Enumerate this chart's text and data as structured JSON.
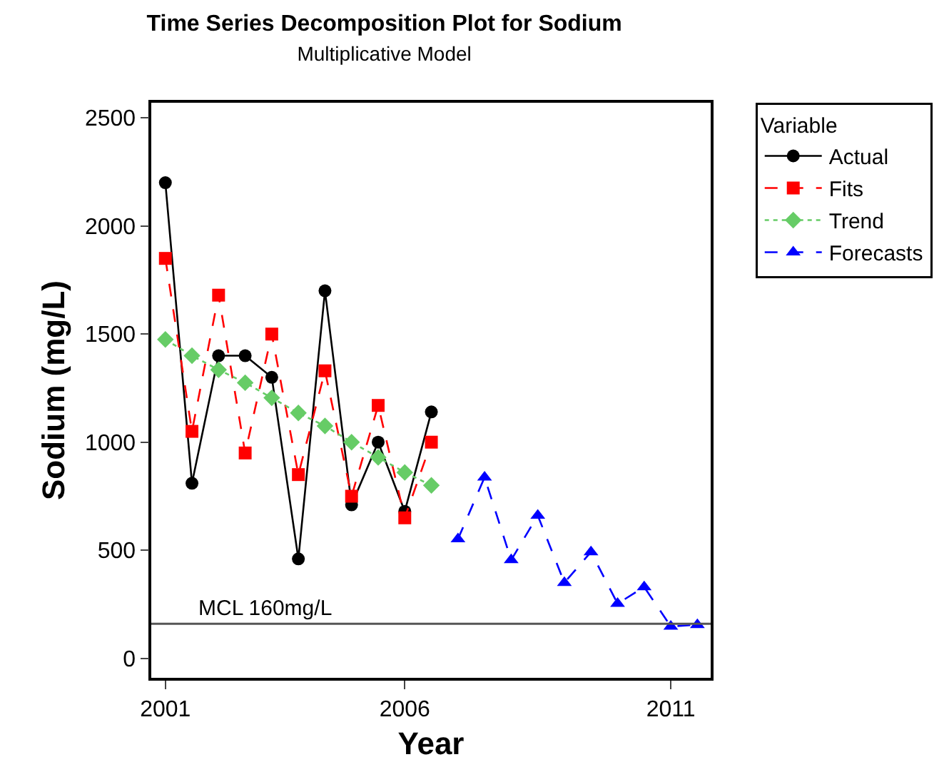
{
  "chart_data": {
    "type": "line",
    "title": "Time Series Decomposition Plot for Sodium",
    "subtitle": "Multiplicative Model",
    "xlabel": "Year",
    "ylabel": "Sodium (mg/L)",
    "legend_title": "Variable",
    "categories": [
      "2001",
      null,
      null,
      null,
      null,
      null,
      null,
      null,
      null,
      "2006",
      null,
      null,
      null,
      null,
      null,
      null,
      null,
      null,
      null,
      "2011",
      null
    ],
    "ylim": [
      -90,
      2570
    ],
    "yticks": [
      0,
      500,
      1000,
      1500,
      2000,
      2500
    ],
    "legend": "top right",
    "ref_lines": [
      {
        "axis": "y",
        "value": 160,
        "label": "MCL 160mg/L",
        "color": "#555555"
      }
    ],
    "series": [
      {
        "name": "Actual",
        "color": "#000000",
        "marker": "circle",
        "line_style": "solid",
        "values": [
          2200,
          810,
          1400,
          1400,
          1300,
          460,
          1700,
          710,
          1000,
          680,
          1140,
          null,
          null,
          null,
          null,
          null,
          null,
          null,
          null,
          null,
          null
        ]
      },
      {
        "name": "Fits",
        "color": "#ff0000",
        "marker": "square",
        "line_style": "dashed",
        "values": [
          1850,
          1050,
          1680,
          950,
          1500,
          850,
          1330,
          750,
          1170,
          650,
          1000,
          null,
          null,
          null,
          null,
          null,
          null,
          null,
          null,
          null,
          null
        ]
      },
      {
        "name": "Trend",
        "color": "#66cc66",
        "marker": "diamond",
        "line_style": "dotted",
        "values": [
          1475,
          1400,
          1335,
          1275,
          1205,
          1135,
          1075,
          1000,
          930,
          860,
          800,
          null,
          null,
          null,
          null,
          null,
          null,
          null,
          null,
          null,
          null
        ]
      },
      {
        "name": "Forecasts",
        "color": "#0000ff",
        "marker": "triangle",
        "line_style": "dashed",
        "values": [
          null,
          null,
          null,
          null,
          null,
          null,
          null,
          null,
          null,
          null,
          null,
          552,
          837,
          455,
          661,
          350,
          492,
          253,
          330,
          148,
          155
        ]
      }
    ]
  }
}
